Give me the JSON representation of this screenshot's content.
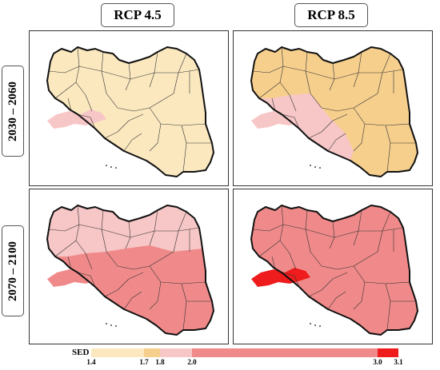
{
  "columns": [
    "RCP 4.5",
    "RCP 8.5"
  ],
  "rows": [
    "2030 – 2060",
    "2070 – 2100"
  ],
  "colors": {
    "c1": "#fbe8bf",
    "c2": "#f6cf8d",
    "c3": "#f7c6c6",
    "c4": "#f08a8a",
    "c5": "#ee1c1c"
  },
  "legend": {
    "title": "SED",
    "ticks": [
      "1.4",
      "1.7",
      "1.8",
      "2.0",
      "3.0",
      "3.1"
    ],
    "breaks": [
      1.4,
      1.7,
      1.8,
      2.0,
      3.0,
      3.1
    ]
  },
  "panels": [
    {
      "id": "rcp45-2030",
      "base": "c1",
      "highlight": "c3",
      "south": "c1",
      "east": "c1"
    },
    {
      "id": "rcp85-2030",
      "base": "c2",
      "highlight": "c3",
      "south": "c3",
      "east": "c2"
    },
    {
      "id": "rcp45-2070",
      "base": "c3",
      "highlight": "c4",
      "south": "c4",
      "east": "c4"
    },
    {
      "id": "rcp85-2070",
      "base": "c4",
      "highlight": "c5",
      "south": "c4",
      "east": "c4"
    }
  ]
}
